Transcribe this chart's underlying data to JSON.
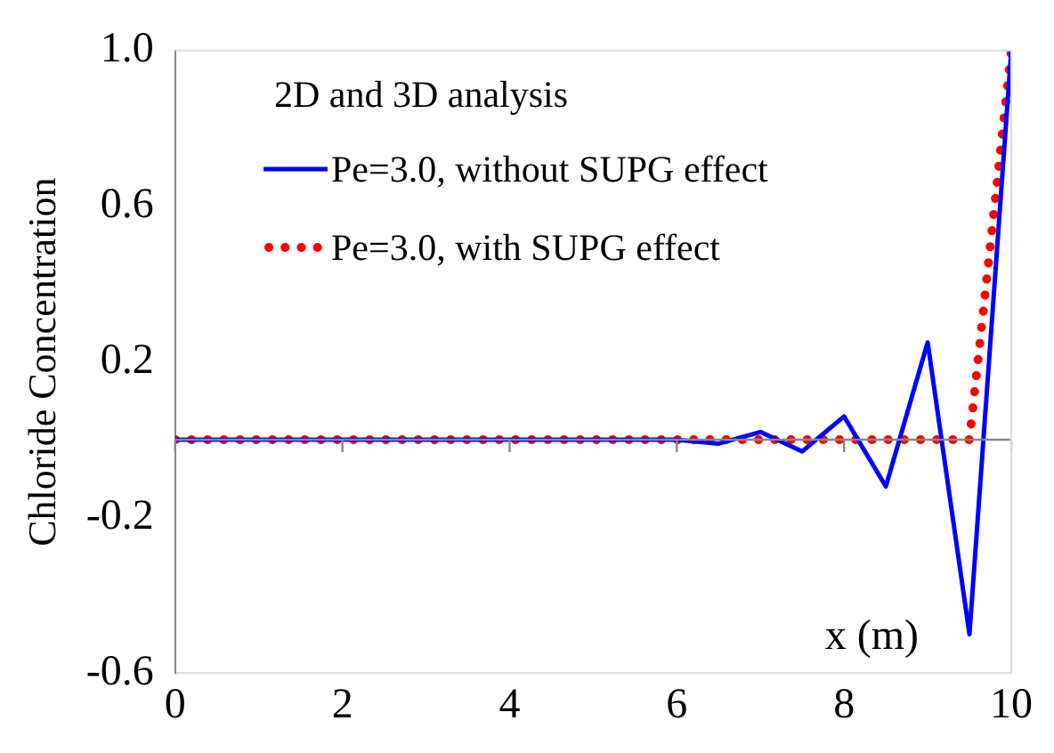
{
  "chart_data": {
    "type": "line",
    "xlabel": "x (m)",
    "ylabel": "Chloride Concentration",
    "legend_title": "2D and 3D analysis",
    "legend": "top left",
    "x": [
      0,
      0.5,
      1,
      1.5,
      2,
      2.5,
      3,
      3.5,
      4,
      4.5,
      5,
      5.5,
      6,
      6.5,
      7,
      7.5,
      8,
      8.5,
      9,
      9.5,
      10
    ],
    "series": [
      {
        "name": "Pe=3.0, without SUPG effect",
        "color": "#0000ff",
        "line_style": "solid",
        "values": [
          0,
          0,
          0,
          0,
          0,
          0,
          0,
          0,
          0,
          0,
          0,
          0,
          0,
          -0.01,
          0.02,
          -0.03,
          0.06,
          -0.12,
          0.25,
          -0.5,
          1.0
        ]
      },
      {
        "name": "Pe=3.0, with SUPG effect",
        "color": "#ff0000",
        "line_style": "dotted",
        "values": [
          0,
          0,
          0,
          0,
          0,
          0,
          0,
          0,
          0,
          0,
          0,
          0,
          0,
          0,
          0,
          0,
          0,
          0,
          0,
          0,
          1.0
        ]
      }
    ],
    "xlim": [
      0,
      10
    ],
    "xticks": [
      0,
      2,
      4,
      6,
      8,
      10
    ],
    "ylim": [
      -0.6,
      1.0
    ],
    "yticks": [
      -0.6,
      -0.2,
      0.2,
      0.6,
      {
        "value": 1,
        "label": "1.0"
      }
    ],
    "grid": false,
    "marker": "none"
  }
}
